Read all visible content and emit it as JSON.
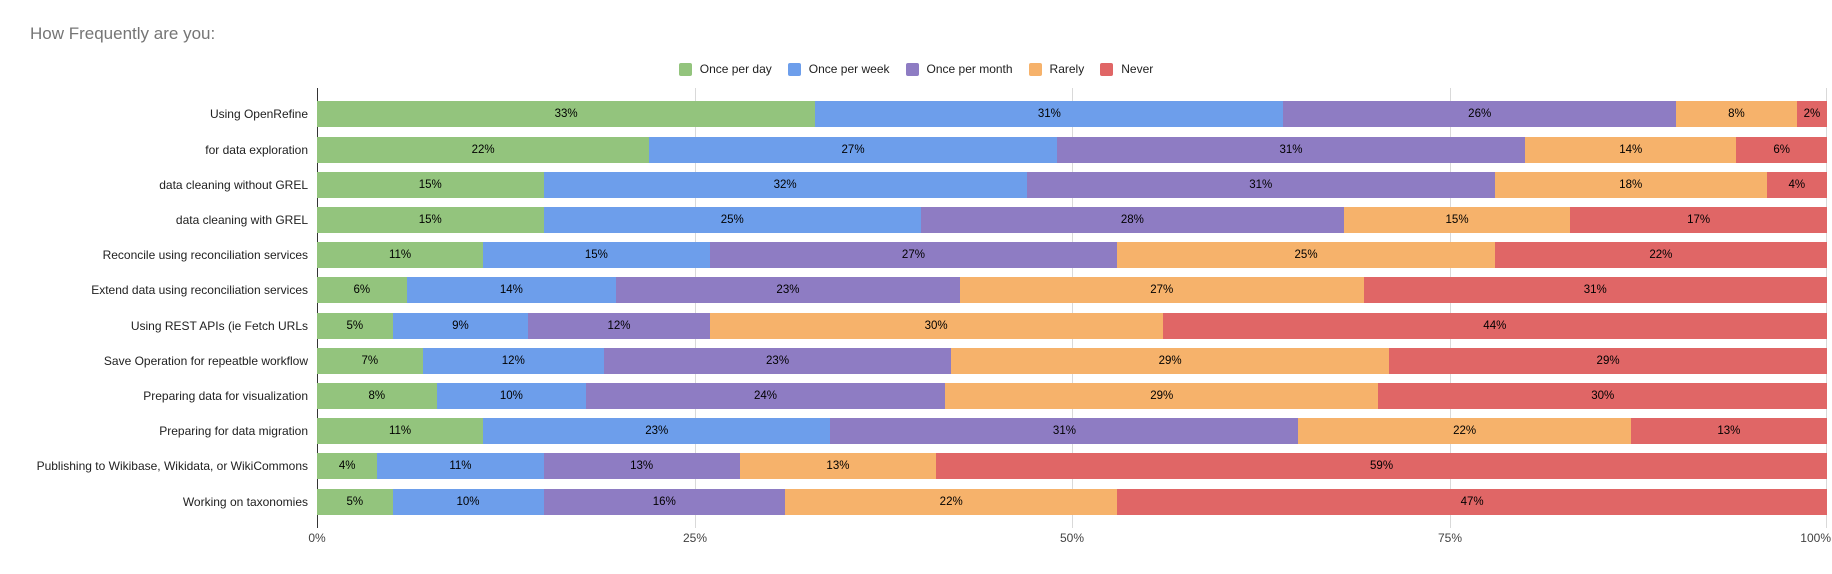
{
  "title": "How Frequently are you:",
  "chart_data": {
    "type": "bar",
    "orientation": "horizontal",
    "stacked": true,
    "units": "percent",
    "title": "How Frequently are you:",
    "legend_position": "top",
    "grid": true,
    "data_labels": "inside, formatted as 'N%'",
    "xlim": [
      0,
      100
    ],
    "x_ticks": [
      {
        "value": 0,
        "label": "0%"
      },
      {
        "value": 25,
        "label": "25%"
      },
      {
        "value": 50,
        "label": "50%"
      },
      {
        "value": 75,
        "label": "75%"
      },
      {
        "value": 100,
        "label": "100%"
      }
    ],
    "categories": [
      "Using OpenRefine",
      "for data exploration",
      "data cleaning without GREL",
      "data cleaning with GREL",
      "Reconcile using reconciliation services",
      "Extend data using reconciliation services",
      "Using REST APIs (ie Fetch URLs",
      "Save Operation for repeatble workflow",
      "Preparing data for visualization",
      "Preparing for data migration",
      "Publishing to Wikibase, Wikidata, or WikiCommons",
      "Working on taxonomies"
    ],
    "series": [
      {
        "name": "Once per day",
        "color": "#93c47d",
        "values": [
          33,
          22,
          15,
          15,
          11,
          6,
          5,
          7,
          8,
          11,
          4,
          5
        ]
      },
      {
        "name": "Once per week",
        "color": "#6d9eeb",
        "values": [
          31,
          27,
          32,
          25,
          15,
          14,
          9,
          12,
          10,
          23,
          11,
          10
        ]
      },
      {
        "name": "Once per month",
        "color": "#8e7cc3",
        "values": [
          26,
          31,
          31,
          28,
          27,
          23,
          12,
          23,
          24,
          31,
          13,
          16
        ]
      },
      {
        "name": "Rarely",
        "color": "#f6b26b",
        "values": [
          8,
          14,
          18,
          15,
          25,
          27,
          30,
          29,
          29,
          22,
          13,
          22
        ]
      },
      {
        "name": "Never",
        "color": "#e06666",
        "values": [
          2,
          6,
          4,
          17,
          22,
          31,
          44,
          29,
          30,
          13,
          59,
          47
        ]
      }
    ],
    "colors": {
      "title_text": "#757575",
      "category_text": "#212121",
      "tick_text": "#424242",
      "baseline": "#333333",
      "gridline": "#d9d9d9",
      "background": "#ffffff"
    }
  }
}
